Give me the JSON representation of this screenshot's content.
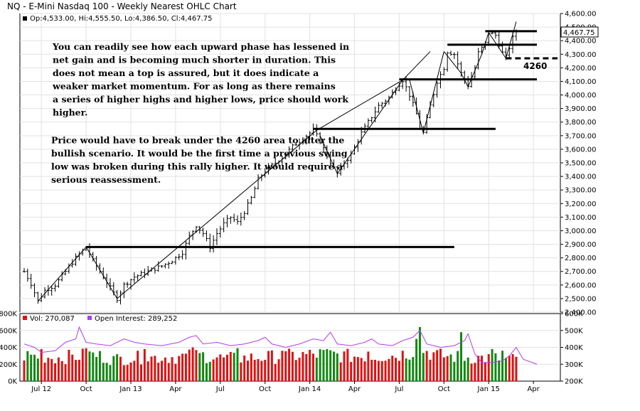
{
  "chart_data": {
    "type": "ohlc",
    "title": "NQ - E-Mini Nasdaq 100 - Weekly Nearest OHLC Chart",
    "ohlc_legend": "Op:4,533.00, Hi:4,555.50, Lo:4,386.50, Cl:4,467.75",
    "last_price_label": "4,467.75",
    "price_axis": {
      "min": 2400,
      "max": 4600,
      "tick_values": [
        2400,
        2500,
        2600,
        2700,
        2800,
        2900,
        3000,
        3100,
        3200,
        3300,
        3400,
        3500,
        3600,
        3700,
        3800,
        3900,
        4000,
        4100,
        4200,
        4300,
        4400,
        4500,
        4600
      ],
      "tick_labels": [
        "2,400.00",
        "2,500.00",
        "2,600.00",
        "2,700.00",
        "2,800.00",
        "2,900.00",
        "3,000.00",
        "3,100.00",
        "3,200.00",
        "3,300.00",
        "3,400.00",
        "3,500.00",
        "3,600.00",
        "3,700.00",
        "3,800.00",
        "3,900.00",
        "4,000.00",
        "4,100.00",
        "4,200.00",
        "4,300.00",
        "4,400.00",
        "4,500.00",
        "4,600.00"
      ]
    },
    "x_axis": {
      "week_range": [
        0,
        155
      ],
      "tick_weeks": [
        5,
        18,
        31,
        44,
        57,
        70,
        83,
        96,
        109,
        122,
        135,
        148
      ],
      "tick_labels": [
        "Jul 12",
        "Oct",
        "Jan 13",
        "Apr",
        "Jul",
        "Oct",
        "Jan 14",
        "Apr",
        "Jul",
        "Oct",
        "Jan 15",
        "Apr"
      ]
    },
    "price_anchors": [
      [
        0,
        2700
      ],
      [
        2,
        2610
      ],
      [
        4,
        2480
      ],
      [
        6,
        2560
      ],
      [
        9,
        2600
      ],
      [
        12,
        2700
      ],
      [
        15,
        2800
      ],
      [
        18,
        2880
      ],
      [
        20,
        2780
      ],
      [
        22,
        2700
      ],
      [
        25,
        2580
      ],
      [
        27,
        2500
      ],
      [
        29,
        2600
      ],
      [
        32,
        2660
      ],
      [
        36,
        2700
      ],
      [
        40,
        2740
      ],
      [
        43,
        2780
      ],
      [
        46,
        2840
      ],
      [
        48,
        2960
      ],
      [
        50,
        3040
      ],
      [
        52,
        2980
      ],
      [
        54,
        2880
      ],
      [
        56,
        2980
      ],
      [
        58,
        3050
      ],
      [
        60,
        3100
      ],
      [
        62,
        3060
      ],
      [
        64,
        3140
      ],
      [
        66,
        3240
      ],
      [
        68,
        3380
      ],
      [
        70,
        3440
      ],
      [
        72,
        3480
      ],
      [
        75,
        3540
      ],
      [
        78,
        3620
      ],
      [
        80,
        3660
      ],
      [
        82,
        3700
      ],
      [
        84,
        3740
      ],
      [
        86,
        3660
      ],
      [
        88,
        3550
      ],
      [
        90,
        3460
      ],
      [
        91,
        3420
      ],
      [
        93,
        3500
      ],
      [
        95,
        3560
      ],
      [
        98,
        3720
      ],
      [
        100,
        3800
      ],
      [
        103,
        3920
      ],
      [
        106,
        3980
      ],
      [
        108,
        4050
      ],
      [
        110,
        4110
      ],
      [
        112,
        4000
      ],
      [
        114,
        3860
      ],
      [
        115,
        3760
      ],
      [
        116,
        3720
      ],
      [
        118,
        3920
      ],
      [
        120,
        4100
      ],
      [
        122,
        4200
      ],
      [
        123,
        4320
      ],
      [
        125,
        4300
      ],
      [
        127,
        4160
      ],
      [
        129,
        4070
      ],
      [
        131,
        4200
      ],
      [
        132,
        4310
      ],
      [
        134,
        4380
      ],
      [
        135,
        4460
      ],
      [
        137,
        4440
      ],
      [
        139,
        4310
      ],
      [
        140,
        4280
      ],
      [
        142,
        4420
      ],
      [
        143,
        4467
      ]
    ],
    "horizontal_levels": [
      {
        "price": 2880,
        "from_week": 18,
        "to_week": 125
      },
      {
        "price": 3750,
        "from_week": 84,
        "to_week": 137
      },
      {
        "price": 4115,
        "from_week": 109,
        "to_week": 149
      },
      {
        "price": 4370,
        "from_week": 123,
        "to_week": 149
      },
      {
        "price": 4470,
        "from_week": 134,
        "to_week": 149
      }
    ],
    "dashed_level": {
      "price": 4270,
      "from_week": 140,
      "to_week": 155
    },
    "trend_lines": [
      [
        [
          27,
          2500
        ],
        [
          85,
          3740
        ],
        [
          110,
          4110
        ],
        [
          118,
          4320
        ]
      ],
      [
        [
          4,
          2480
        ],
        [
          18,
          2880
        ],
        [
          27,
          2500
        ]
      ],
      [
        [
          86,
          3700
        ],
        [
          91,
          3420
        ],
        [
          110,
          4110
        ]
      ],
      [
        [
          112,
          4110
        ],
        [
          116,
          3720
        ],
        [
          122,
          4320
        ]
      ],
      [
        [
          122,
          4320
        ],
        [
          127,
          4160
        ],
        [
          129,
          4060
        ],
        [
          133,
          4300
        ],
        [
          135,
          4460
        ],
        [
          140,
          4270
        ],
        [
          143,
          4540
        ]
      ]
    ],
    "level_label": "4260",
    "annotations": [
      "You can readily see how each upward phase has lessened in",
      "net gain and is becoming much shorter in duration.  This",
      "does not mean a top is assured, but it does indicate a",
      "weaker market momentum.  For as long as there remains",
      "a series of higher highs and higher lows, price should work",
      "higher.",
      "",
      "Price would have to break under the 4260 area to alter the",
      "bullish scenario.  It would be the first time a previous swing",
      "low was broken during this rally higher.  It would require a",
      "serious reassessment."
    ],
    "volume_legend": "Vol: 270,087",
    "open_interest_legend": "Open Interest: 289,252",
    "volume_axis": {
      "min": 0,
      "max": 800000,
      "tick_values": [
        0,
        200000,
        400000,
        600000,
        800000
      ],
      "tick_labels": [
        "0K",
        "200K",
        "400K",
        "600K",
        "800K"
      ]
    },
    "oi_axis": {
      "min": 200000,
      "max": 600000,
      "tick_values": [
        200000,
        300000,
        400000,
        500000,
        600000
      ],
      "tick_labels": [
        "200K",
        "300K",
        "400K",
        "500K",
        "600K"
      ]
    },
    "volume_anchors": [
      [
        0,
        330000
      ],
      [
        10,
        300000
      ],
      [
        20,
        340000
      ],
      [
        26,
        280000
      ],
      [
        33,
        300000
      ],
      [
        45,
        310000
      ],
      [
        52,
        330000
      ],
      [
        58,
        290000
      ],
      [
        66,
        300000
      ],
      [
        72,
        310000
      ],
      [
        80,
        330000
      ],
      [
        88,
        350000
      ],
      [
        94,
        320000
      ],
      [
        100,
        320000
      ],
      [
        108,
        330000
      ],
      [
        112,
        370000
      ],
      [
        115,
        420000
      ],
      [
        120,
        330000
      ],
      [
        126,
        310000
      ],
      [
        132,
        300000
      ],
      [
        138,
        290000
      ],
      [
        145,
        270000
      ]
    ],
    "volume_spikes": [
      [
        5,
        380000
      ],
      [
        18,
        390000
      ],
      [
        35,
        380000
      ],
      [
        49,
        400000
      ],
      [
        62,
        390000
      ],
      [
        75,
        360000
      ],
      [
        88,
        380000
      ],
      [
        100,
        350000
      ],
      [
        114,
        500000
      ],
      [
        115,
        640000
      ],
      [
        127,
        580000
      ],
      [
        136,
        380000
      ],
      [
        139,
        360000
      ]
    ],
    "oi_anchors": [
      [
        0,
        420000
      ],
      [
        3,
        400000
      ],
      [
        5,
        370000
      ],
      [
        9,
        380000
      ],
      [
        12,
        430000
      ],
      [
        15,
        450000
      ],
      [
        16,
        520000
      ],
      [
        18,
        430000
      ],
      [
        21,
        420000
      ],
      [
        25,
        410000
      ],
      [
        29,
        450000
      ],
      [
        32,
        430000
      ],
      [
        35,
        420000
      ],
      [
        40,
        410000
      ],
      [
        45,
        430000
      ],
      [
        48,
        460000
      ],
      [
        50,
        470000
      ],
      [
        52,
        420000
      ],
      [
        56,
        430000
      ],
      [
        60,
        410000
      ],
      [
        64,
        420000
      ],
      [
        68,
        440000
      ],
      [
        70,
        460000
      ],
      [
        72,
        420000
      ],
      [
        76,
        400000
      ],
      [
        80,
        420000
      ],
      [
        84,
        450000
      ],
      [
        87,
        440000
      ],
      [
        89,
        490000
      ],
      [
        91,
        420000
      ],
      [
        95,
        410000
      ],
      [
        99,
        430000
      ],
      [
        101,
        450000
      ],
      [
        103,
        420000
      ],
      [
        107,
        410000
      ],
      [
        110,
        440000
      ],
      [
        113,
        460000
      ],
      [
        115,
        500000
      ],
      [
        117,
        420000
      ],
      [
        121,
        400000
      ],
      [
        125,
        410000
      ],
      [
        128,
        440000
      ],
      [
        129,
        480000
      ],
      [
        131,
        360000
      ],
      [
        133,
        310000
      ],
      [
        136,
        310000
      ],
      [
        139,
        320000
      ],
      [
        141,
        350000
      ],
      [
        143,
        400000
      ],
      [
        145,
        330000
      ],
      [
        149,
        300000
      ]
    ]
  }
}
